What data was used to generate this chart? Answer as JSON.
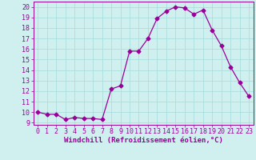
{
  "x": [
    0,
    1,
    2,
    3,
    4,
    5,
    6,
    7,
    8,
    9,
    10,
    11,
    12,
    13,
    14,
    15,
    16,
    17,
    18,
    19,
    20,
    21,
    22,
    23
  ],
  "y": [
    10.0,
    9.8,
    9.8,
    9.3,
    9.5,
    9.4,
    9.4,
    9.3,
    12.2,
    12.5,
    15.8,
    15.8,
    17.0,
    18.9,
    19.6,
    20.0,
    19.9,
    19.3,
    19.7,
    17.8,
    16.3,
    14.3,
    12.8,
    11.5
  ],
  "line_color": "#990099",
  "marker": "D",
  "marker_size": 2.5,
  "bg_color": "#d0f0f0",
  "grid_color": "#aadddd",
  "xlabel": "Windchill (Refroidissement éolien,°C)",
  "xlabel_fontsize": 6.5,
  "ylabel_ticks": [
    9,
    10,
    11,
    12,
    13,
    14,
    15,
    16,
    17,
    18,
    19,
    20
  ],
  "ylim": [
    8.8,
    20.5
  ],
  "xlim": [
    -0.5,
    23.5
  ],
  "tick_fontsize": 6,
  "axis_color": "#990099"
}
